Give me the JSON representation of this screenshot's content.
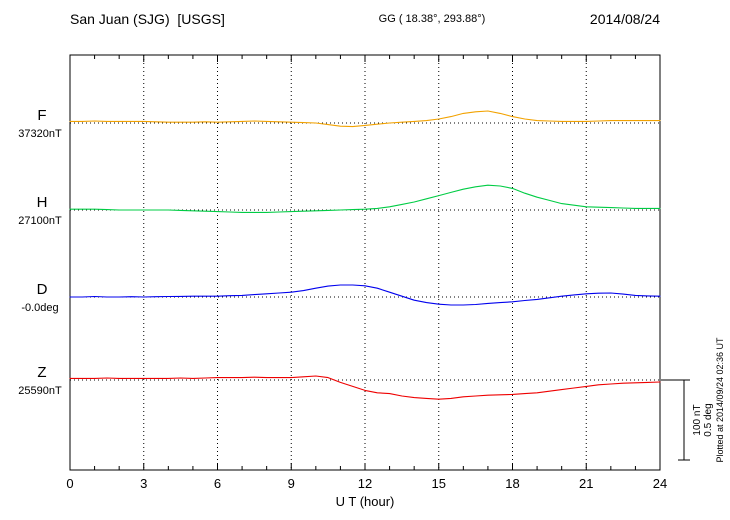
{
  "header": {
    "station_title": "San Juan (SJG)  [USGS]",
    "geo_coords": "GG ( 18.38°, 293.88°)",
    "date": "2014/08/24"
  },
  "x_axis": {
    "label": "U T (hour)",
    "tick_values": [
      0,
      3,
      6,
      9,
      12,
      15,
      18,
      21,
      24
    ],
    "min": 0,
    "max": 24
  },
  "scale_bar": {
    "nt_label": "100 nT",
    "deg_label": "0.5 deg",
    "nt_span": 100,
    "deg_span": 0.5
  },
  "plotted_at": "Plotted at 2014/09/24 02:36 UT",
  "chart_data": {
    "type": "line",
    "title": "San Juan (SJG) [USGS] magnetogram 2014/08/24",
    "xlabel": "U T (hour)",
    "x_range": [
      0,
      24
    ],
    "grid": "dotted vertical lines every 3 hours; dotted horizontal baseline per channel",
    "legend_position": "left channel labels",
    "x_hours": [
      0,
      0.5,
      1,
      1.5,
      2,
      2.5,
      3,
      3.5,
      4,
      4.5,
      5,
      5.5,
      6,
      6.5,
      7,
      7.5,
      8,
      8.5,
      9,
      9.5,
      10,
      10.5,
      11,
      11.5,
      12,
      12.5,
      13,
      13.5,
      14,
      14.5,
      15,
      15.5,
      16,
      16.5,
      17,
      17.5,
      18,
      18.5,
      19,
      19.5,
      20,
      20.5,
      21,
      21.5,
      22,
      22.5,
      23,
      23.5,
      24
    ],
    "series": [
      {
        "channel": "F",
        "baseline_label": "37320nT",
        "baseline_value": 37320,
        "unit": "nT",
        "color": "#f2a200",
        "offsets": [
          2,
          2,
          2.5,
          2,
          2,
          2,
          2,
          1.5,
          1,
          1,
          1,
          1.5,
          1,
          1.5,
          2,
          2.5,
          2,
          1.5,
          1,
          0.5,
          0,
          -2,
          -4,
          -4.5,
          -3,
          -1.5,
          0,
          1,
          2,
          3,
          5,
          8,
          12,
          14,
          15,
          12,
          8,
          5,
          3,
          2.5,
          2,
          2,
          2,
          2.5,
          3,
          3,
          3,
          3,
          3
        ]
      },
      {
        "channel": "H",
        "baseline_label": "27100nT",
        "baseline_value": 27100,
        "unit": "nT",
        "color": "#00cc44",
        "offsets": [
          1,
          1,
          1,
          0.5,
          0,
          0,
          0,
          0,
          0,
          -0.5,
          -1,
          -1.5,
          -2,
          -2.5,
          -3,
          -3,
          -3,
          -2.5,
          -2,
          -1.5,
          -1,
          -0.5,
          0,
          0.5,
          1,
          2,
          4,
          7,
          10,
          14,
          18,
          22,
          26,
          29,
          31,
          30,
          27,
          21,
          16,
          12,
          8,
          6,
          4,
          3.5,
          3,
          2.5,
          2,
          2,
          2
        ]
      },
      {
        "channel": "D",
        "baseline_label": "-0.0deg",
        "baseline_value": -0.0,
        "unit": "deg",
        "color": "#0000ee",
        "offsets": [
          0,
          0,
          0.003,
          0,
          0,
          0.002,
          0,
          0.002,
          0.003,
          0.004,
          0.005,
          0.005,
          0.005,
          0.008,
          0.01,
          0.015,
          0.02,
          0.025,
          0.03,
          0.04,
          0.055,
          0.068,
          0.075,
          0.075,
          0.07,
          0.055,
          0.03,
          0.005,
          -0.02,
          -0.035,
          -0.045,
          -0.05,
          -0.05,
          -0.047,
          -0.04,
          -0.035,
          -0.03,
          -0.022,
          -0.015,
          -0.005,
          0.005,
          0.013,
          0.02,
          0.024,
          0.025,
          0.018,
          0.01,
          0.007,
          0.005
        ]
      },
      {
        "channel": "Z",
        "baseline_label": "25590nT",
        "baseline_value": 25590,
        "unit": "nT",
        "color": "#ee0000",
        "offsets": [
          2,
          2,
          2,
          2.5,
          2,
          2,
          2,
          2,
          2,
          2.5,
          2,
          2.5,
          3,
          3,
          3,
          3.5,
          3,
          3,
          3,
          4,
          5,
          3,
          -3,
          -8,
          -13,
          -16,
          -17,
          -20,
          -22,
          -23,
          -24,
          -23,
          -21,
          -20,
          -19,
          -18.5,
          -18,
          -17,
          -16,
          -14,
          -12,
          -10,
          -8,
          -6,
          -5,
          -4,
          -3.5,
          -3,
          -2.5
        ]
      }
    ]
  }
}
